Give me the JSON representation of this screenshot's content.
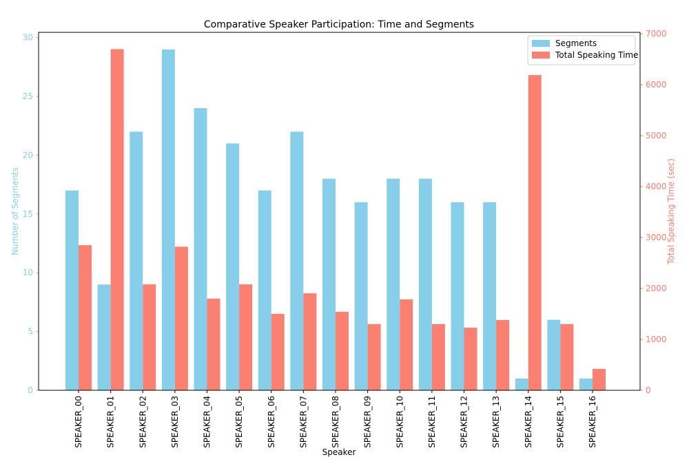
{
  "chart_data": {
    "type": "bar",
    "title": "Comparative Speaker Participation: Time and Segments",
    "xlabel": "Speaker",
    "ylabel_left": "Number of Segments",
    "ylabel_right": "Total Speaking Time (sec)",
    "ylim_left": [
      0,
      30.45
    ],
    "ylim_right": [
      0,
      7030
    ],
    "yticks_left": [
      0,
      5,
      10,
      15,
      20,
      25,
      30
    ],
    "yticks_right": [
      0,
      1000,
      2000,
      3000,
      4000,
      5000,
      6000,
      7000
    ],
    "legend_placement": "top-right",
    "categories": [
      "SPEAKER_00",
      "SPEAKER_01",
      "SPEAKER_02",
      "SPEAKER_03",
      "SPEAKER_04",
      "SPEAKER_05",
      "SPEAKER_06",
      "SPEAKER_07",
      "SPEAKER_08",
      "SPEAKER_09",
      "SPEAKER_10",
      "SPEAKER_11",
      "SPEAKER_12",
      "SPEAKER_13",
      "SPEAKER_14",
      "SPEAKER_15",
      "SPEAKER_16"
    ],
    "series": [
      {
        "name": "Segments",
        "axis": "left",
        "color": "#87ceeb",
        "values": [
          17,
          9,
          22,
          29,
          24,
          21,
          17,
          22,
          18,
          16,
          18,
          18,
          16,
          16,
          1,
          6,
          1
        ]
      },
      {
        "name": "Total Speaking Time",
        "axis": "right",
        "color": "#fa8072",
        "values": [
          2850,
          6700,
          2080,
          2820,
          1800,
          2080,
          1500,
          1905,
          1540,
          1300,
          1785,
          1300,
          1230,
          1380,
          6190,
          1300,
          420
        ]
      }
    ]
  }
}
